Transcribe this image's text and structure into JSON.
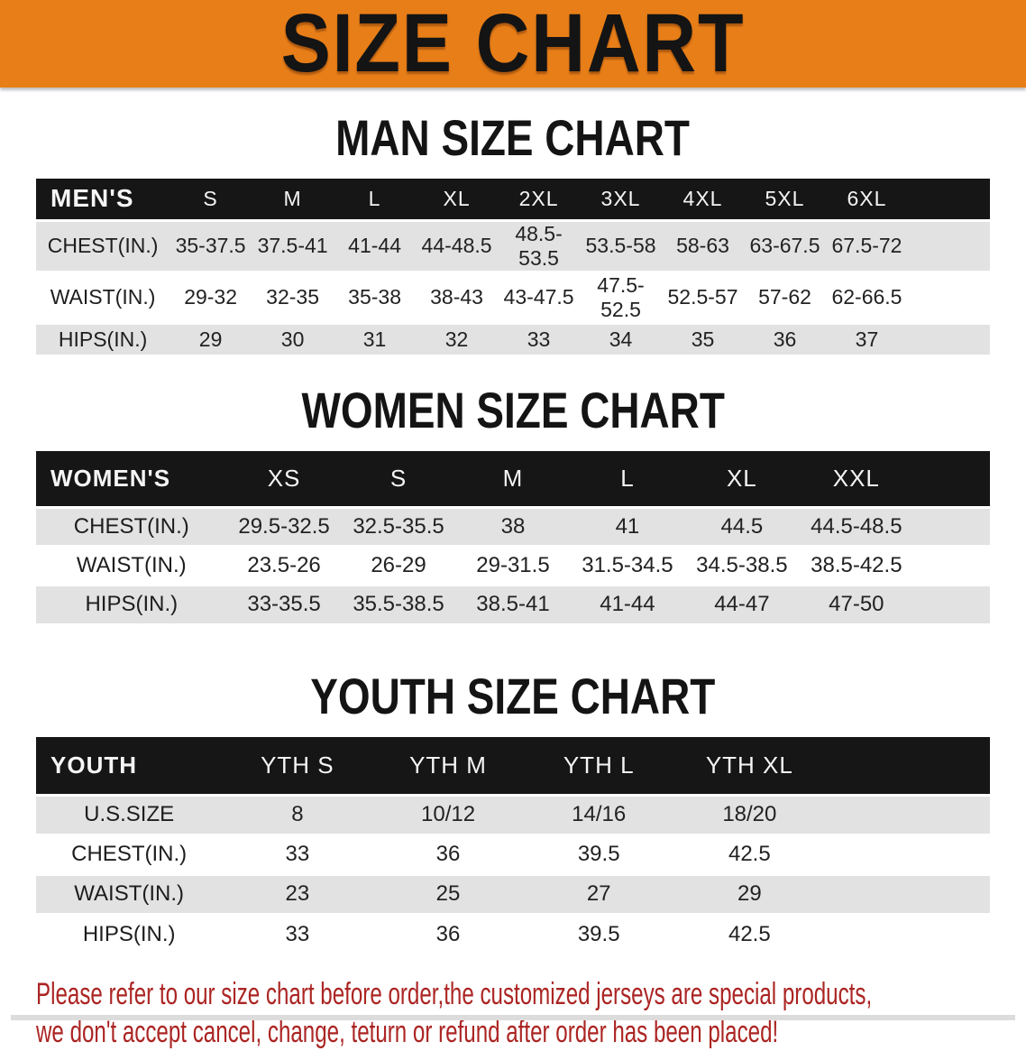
{
  "banner": {
    "title": "SIZE CHART",
    "bg_color": "#e87e18",
    "text_color": "#141414"
  },
  "sections": [
    {
      "heading": "MAN SIZE CHART",
      "group_label": "MEN'S",
      "columns": [
        "S",
        "M",
        "L",
        "XL",
        "2XL",
        "3XL",
        "4XL",
        "5XL",
        "6XL"
      ],
      "rows": [
        {
          "label": "CHEST(IN.)",
          "values": [
            "35-37.5",
            "37.5-41",
            "41-44",
            "44-48.5",
            "48.5-53.5",
            "53.5-58",
            "58-63",
            "63-67.5",
            "67.5-72"
          ]
        },
        {
          "label": "WAIST(IN.)",
          "values": [
            "29-32",
            "32-35",
            "35-38",
            "38-43",
            "43-47.5",
            "47.5-52.5",
            "52.5-57",
            "57-62",
            "62-66.5"
          ]
        },
        {
          "label": "HIPS(IN.)",
          "values": [
            "29",
            "30",
            "31",
            "32",
            "33",
            "34",
            "35",
            "36",
            "37"
          ]
        }
      ]
    },
    {
      "heading": "WOMEN SIZE CHART",
      "group_label": "WOMEN'S",
      "columns": [
        "XS",
        "S",
        "M",
        "L",
        "XL",
        "XXL"
      ],
      "rows": [
        {
          "label": "CHEST(IN.)",
          "values": [
            "29.5-32.5",
            "32.5-35.5",
            "38",
            "41",
            "44.5",
            "44.5-48.5"
          ]
        },
        {
          "label": "WAIST(IN.)",
          "values": [
            "23.5-26",
            "26-29",
            "29-31.5",
            "31.5-34.5",
            "34.5-38.5",
            "38.5-42.5"
          ]
        },
        {
          "label": "HIPS(IN.)",
          "values": [
            "33-35.5",
            "35.5-38.5",
            "38.5-41",
            "41-44",
            "44-47",
            "47-50"
          ]
        }
      ]
    },
    {
      "heading": "YOUTH SIZE CHART",
      "group_label": "YOUTH",
      "columns": [
        "YTH S",
        "YTH M",
        "YTH L",
        "YTH XL"
      ],
      "rows": [
        {
          "label": "U.S.SIZE",
          "values": [
            "8",
            "10/12",
            "14/16",
            "18/20"
          ]
        },
        {
          "label": "CHEST(IN.)",
          "values": [
            "33",
            "36",
            "39.5",
            "42.5"
          ]
        },
        {
          "label": "WAIST(IN.)",
          "values": [
            "23",
            "25",
            "27",
            "29"
          ]
        },
        {
          "label": "HIPS(IN.)",
          "values": [
            "33",
            "36",
            "39.5",
            "42.5"
          ]
        }
      ]
    }
  ],
  "disclaimer": {
    "color": "#ab2523",
    "lines": [
      "Please refer to our size chart before order,the customized jerseys are special products,",
      "we don't accept cancel, change, teturn or refund after order has been placed!"
    ]
  }
}
